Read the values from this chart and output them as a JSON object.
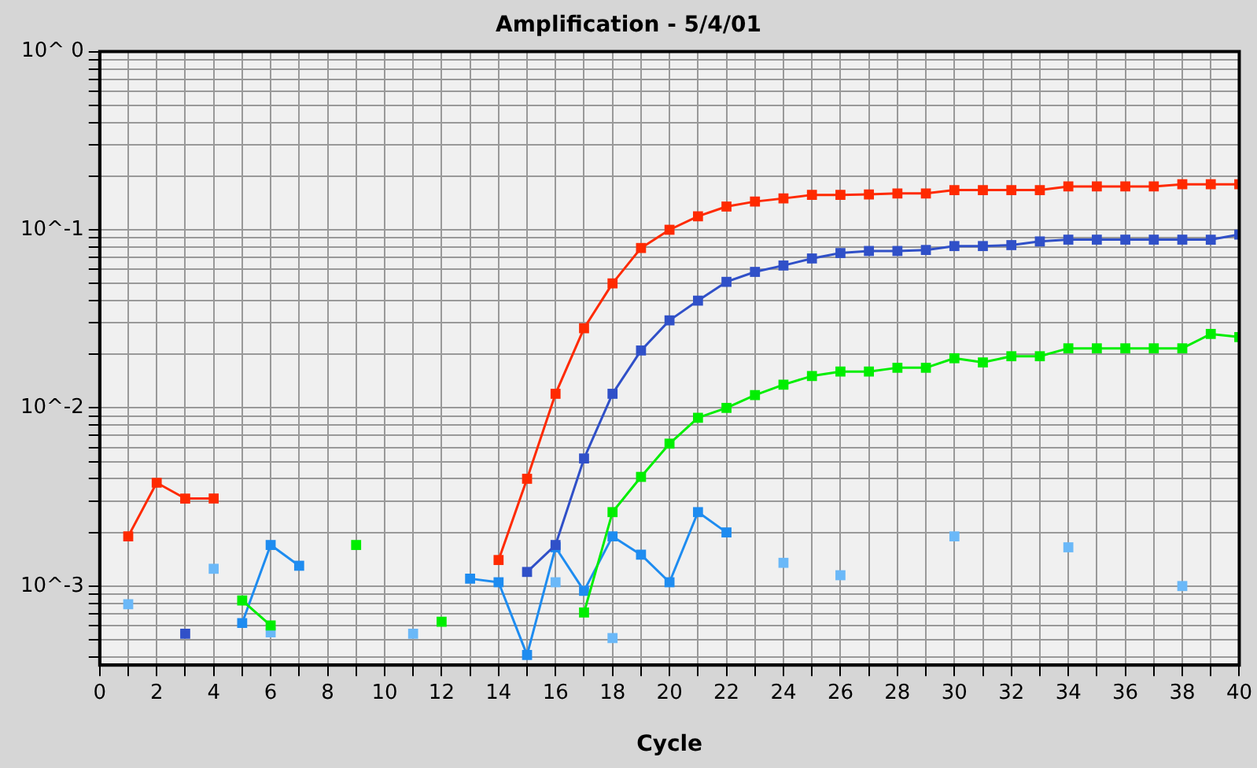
{
  "chart_data": {
    "type": "line",
    "title": "Amplification - 5/4/01",
    "xlabel": "Cycle",
    "xlim": [
      0,
      40
    ],
    "xticks": [
      0,
      {
        "value": 1,
        "label": null
      },
      2,
      {
        "value": 3,
        "label": null
      },
      4,
      {
        "value": 5,
        "label": null
      },
      6,
      {
        "value": 7,
        "label": null
      },
      8,
      {
        "value": 9,
        "label": null
      },
      10,
      {
        "value": 11,
        "label": null
      },
      12,
      {
        "value": 13,
        "label": null
      },
      14,
      {
        "value": 15,
        "label": null
      },
      16,
      {
        "value": 17,
        "label": null
      },
      18,
      {
        "value": 19,
        "label": null
      },
      20,
      {
        "value": 21,
        "label": null
      },
      22,
      {
        "value": 23,
        "label": null
      },
      24,
      {
        "value": 25,
        "label": null
      },
      26,
      {
        "value": 27,
        "label": null
      },
      28,
      {
        "value": 29,
        "label": null
      },
      30,
      {
        "value": 31,
        "label": null
      },
      32,
      {
        "value": 33,
        "label": null
      },
      34,
      {
        "value": 35,
        "label": null
      },
      36,
      {
        "value": 37,
        "label": null
      },
      38,
      {
        "value": 39,
        "label": null
      },
      40
    ],
    "ylim": [
      0.00036,
      1
    ],
    "log": "y",
    "yticks": [
      {
        "value": 0.0004,
        "label": null
      },
      {
        "value": 0.0005,
        "label": null
      },
      {
        "value": 0.0006,
        "label": null
      },
      {
        "value": 0.0007,
        "label": null
      },
      {
        "value": 0.0008,
        "label": null
      },
      {
        "value": 0.0009,
        "label": null
      },
      {
        "value": 0.001,
        "label": "10^-3"
      },
      {
        "value": 0.002,
        "label": null
      },
      {
        "value": 0.003,
        "label": null
      },
      {
        "value": 0.004,
        "label": null
      },
      {
        "value": 0.005,
        "label": null
      },
      {
        "value": 0.006,
        "label": null
      },
      {
        "value": 0.007,
        "label": null
      },
      {
        "value": 0.008,
        "label": null
      },
      {
        "value": 0.009,
        "label": null
      },
      {
        "value": 0.01,
        "label": "10^-2"
      },
      {
        "value": 0.02,
        "label": null
      },
      {
        "value": 0.03,
        "label": null
      },
      {
        "value": 0.04,
        "label": null
      },
      {
        "value": 0.05,
        "label": null
      },
      {
        "value": 0.06,
        "label": null
      },
      {
        "value": 0.07,
        "label": null
      },
      {
        "value": 0.08,
        "label": null
      },
      {
        "value": 0.09,
        "label": null
      },
      {
        "value": 0.1,
        "label": "10^-1"
      },
      {
        "value": 0.2,
        "label": null
      },
      {
        "value": 0.3,
        "label": null
      },
      {
        "value": 0.4,
        "label": null
      },
      {
        "value": 0.5,
        "label": null
      },
      {
        "value": 0.6,
        "label": null
      },
      {
        "value": 0.7,
        "label": null
      },
      {
        "value": 0.8,
        "label": null
      },
      {
        "value": 0.9,
        "label": null
      },
      {
        "value": 1,
        "label": "10^ 0"
      }
    ],
    "grid": true,
    "legend": false,
    "marker": "square",
    "line_style": "solid",
    "series": [
      {
        "color": "#ff2a00",
        "x": [
          1,
          2,
          3,
          4,
          5,
          14,
          15,
          16,
          17,
          18,
          19,
          20,
          21,
          22,
          23,
          24,
          25,
          26,
          27,
          28,
          29,
          30,
          31,
          32,
          33,
          34,
          35,
          36,
          37,
          38,
          39,
          40
        ],
        "values": [
          0.0019,
          0.0038,
          0.0031,
          0.0031,
          null,
          0.0014,
          0.004,
          0.012,
          0.028,
          0.05,
          0.079,
          0.1,
          0.119,
          0.135,
          0.144,
          0.15,
          0.157,
          0.157,
          0.158,
          0.16,
          0.16,
          0.167,
          0.167,
          0.167,
          0.167,
          0.175,
          0.175,
          0.175,
          0.175,
          0.18,
          0.18,
          0.18
        ]
      },
      {
        "color": "#3050c8",
        "x": [
          3,
          4,
          15,
          16,
          17,
          18,
          19,
          20,
          21,
          22,
          23,
          24,
          25,
          26,
          27,
          28,
          29,
          30,
          31,
          32,
          33,
          34,
          35,
          36,
          37,
          38,
          39,
          40
        ],
        "values": [
          0.00054,
          null,
          0.0012,
          0.0017,
          0.0052,
          0.012,
          0.021,
          0.031,
          0.04,
          0.051,
          0.058,
          0.063,
          0.069,
          0.074,
          0.076,
          0.076,
          0.077,
          0.081,
          0.081,
          0.082,
          0.086,
          0.088,
          0.088,
          0.088,
          0.088,
          0.088,
          0.088,
          0.094
        ]
      },
      {
        "color": "#00ee00",
        "x": [
          5,
          6,
          7,
          9,
          10,
          12,
          13,
          17,
          18,
          19,
          20,
          21,
          22,
          23,
          24,
          25,
          26,
          27,
          28,
          29,
          30,
          31,
          32,
          33,
          34,
          35,
          36,
          37,
          38,
          39,
          40
        ],
        "values": [
          0.00083,
          0.0006,
          null,
          0.0017,
          null,
          0.00063,
          null,
          0.00071,
          0.0026,
          0.0041,
          0.0063,
          0.0088,
          0.01,
          0.0118,
          0.0135,
          0.0151,
          0.016,
          0.016,
          0.0168,
          0.0168,
          0.019,
          0.018,
          0.0195,
          0.0195,
          0.0216,
          0.0216,
          0.0216,
          0.0216,
          0.0216,
          0.026,
          0.025
        ]
      },
      {
        "color": "#1e8cf0",
        "x": [
          5,
          6,
          7,
          8,
          13,
          14,
          15,
          16,
          17,
          18,
          19,
          20,
          21,
          22
        ],
        "values": [
          0.00062,
          0.0017,
          0.0013,
          null,
          0.0011,
          0.00105,
          0.00041,
          0.00165,
          0.00094,
          0.0019,
          0.0015,
          0.00105,
          0.0026,
          0.002
        ]
      },
      {
        "type": "scatter",
        "color": "#6ab8f8",
        "x": [
          1,
          4,
          6,
          11,
          16,
          18,
          24,
          26,
          30,
          34,
          38
        ],
        "values": [
          0.00079,
          0.00125,
          0.00055,
          0.00054,
          0.00105,
          0.00051,
          0.00135,
          0.00115,
          0.0019,
          0.00165,
          0.001
        ]
      }
    ]
  }
}
